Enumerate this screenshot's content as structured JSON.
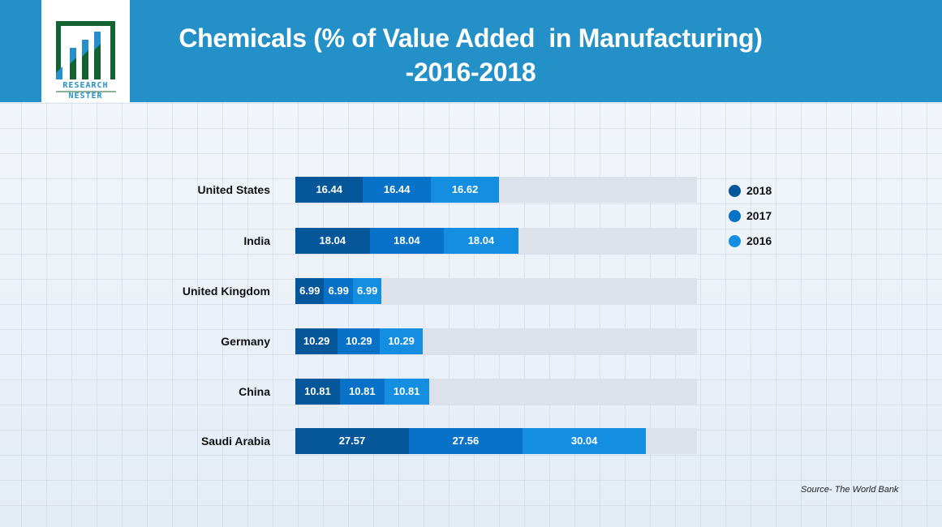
{
  "header": {
    "title_line1": "Chemicals (% of Value Added  in Manufacturing)",
    "title_line2": "-2016-2018",
    "logo_text_top": "RESEARCH",
    "logo_text_bottom": "NESTER",
    "background_color": "#2390c8"
  },
  "source": "Source- The World Bank",
  "colors": {
    "2018": "#06579a",
    "2017": "#0872c8",
    "2016": "#138ee0",
    "track": "#dde2ea",
    "logo_green": "#146132",
    "logo_blue": "#2590cd"
  },
  "chart_data": {
    "type": "bar",
    "orientation": "horizontal",
    "stacked": true,
    "title": "Chemicals (% of Value Added  in Manufacturing) -2016-2018",
    "xlabel": "",
    "ylabel": "",
    "xlim": [
      0,
      97.5
    ],
    "grid": false,
    "legend_position": "right",
    "categories": [
      "United States",
      "India",
      "United Kingdom",
      "Germany",
      "China",
      "Saudi Arabia"
    ],
    "series": [
      {
        "name": "2018",
        "color": "#06579a",
        "values": [
          16.44,
          18.04,
          6.99,
          10.29,
          10.81,
          27.57
        ]
      },
      {
        "name": "2017",
        "color": "#0872c8",
        "values": [
          16.44,
          18.04,
          6.99,
          10.29,
          10.81,
          27.56
        ]
      },
      {
        "name": "2016",
        "color": "#138ee0",
        "values": [
          16.62,
          18.04,
          6.99,
          10.29,
          10.81,
          30.04
        ]
      }
    ],
    "data_labels": [
      [
        "16.44",
        "16.44",
        "16.62"
      ],
      [
        "18.04",
        "18.04",
        "18.04"
      ],
      [
        "6.99",
        "6.99",
        "6.99"
      ],
      [
        "10.29",
        "10.29",
        "10.29"
      ],
      [
        "10.81",
        "10.81",
        "10.81"
      ],
      [
        "27.57",
        "27.56",
        "30.04"
      ]
    ]
  }
}
